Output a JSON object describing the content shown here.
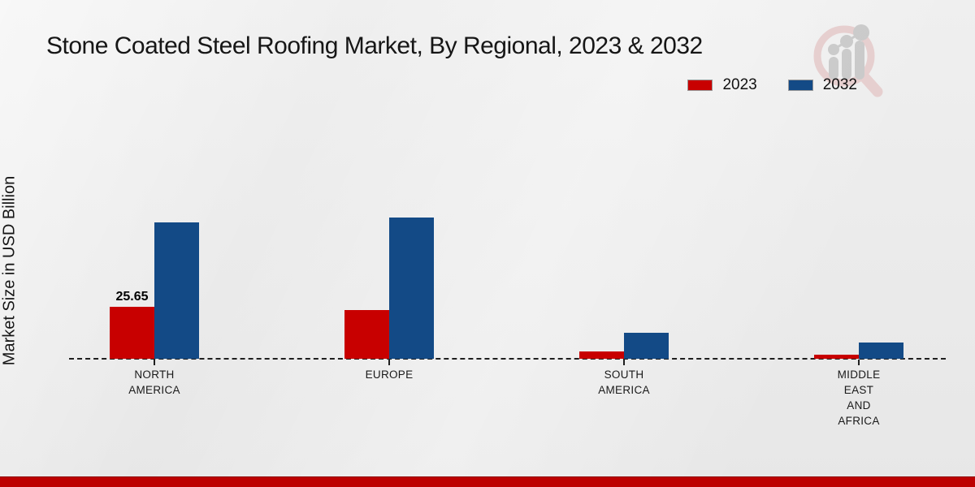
{
  "header": {
    "title": "Stone Coated Steel Roofing Market, By Regional, 2023 & 2032"
  },
  "logo": {
    "name": "magnifier-bar-chart-watermark"
  },
  "chart_data": {
    "type": "bar",
    "title": "Stone Coated Steel Roofing Market, By Regional, 2023 & 2032",
    "xlabel": "",
    "ylabel": "Market Size in USD Billion",
    "unit": "USD Billion",
    "categories": [
      "North America",
      "Europe",
      "South America",
      "Middle East and Africa"
    ],
    "category_tick_labels": [
      "NORTH\nAMERICA",
      "EUROPE",
      "SOUTH\nAMERICA",
      "MIDDLE\nEAST\nAND\nAFRICA"
    ],
    "series": [
      {
        "name": "2023",
        "color": "#c80000",
        "values": [
          25.65,
          24.1,
          3.6,
          2.1
        ]
      },
      {
        "name": "2032",
        "color": "#134a86",
        "values": [
          67.3,
          69.8,
          12.8,
          8.0
        ]
      }
    ],
    "bar_labels": [
      {
        "series_index": 0,
        "category_index": 0,
        "text": "25.65"
      }
    ],
    "axis": {
      "baseline_style": "dashed",
      "baseline_color": "#1f1f1f",
      "y_ticks_visible": false,
      "grid": false
    },
    "legend_position": "top-right"
  },
  "footer": {
    "bar_color": "#bd0000"
  }
}
